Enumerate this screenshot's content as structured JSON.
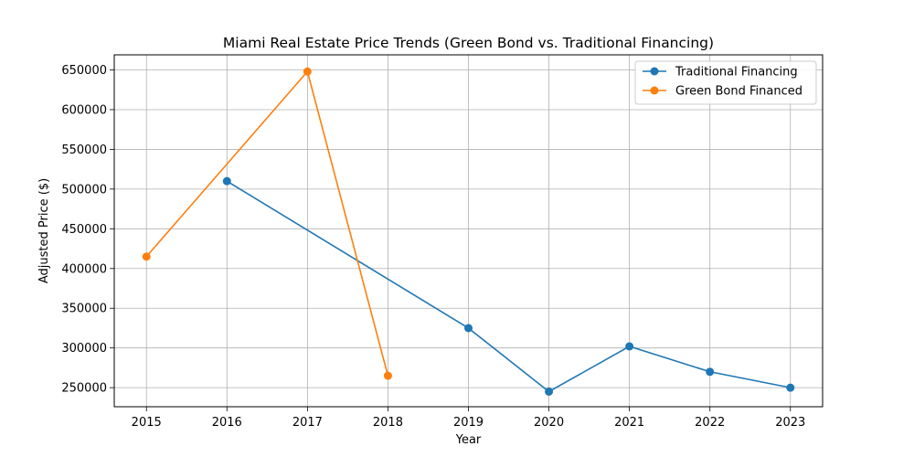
{
  "chart_data": {
    "type": "line",
    "title": "Miami Real Estate Price Trends (Green Bond vs. Traditional Financing)",
    "xlabel": "Year",
    "ylabel": "Adjusted Price ($)",
    "x_ticks": [
      "2015",
      "2016",
      "2017",
      "2018",
      "2019",
      "2020",
      "2021",
      "2022",
      "2023"
    ],
    "y_ticks": [
      "250000",
      "300000",
      "350000",
      "400000",
      "450000",
      "500000",
      "550000",
      "600000",
      "650000"
    ],
    "xlim": [
      2014.6,
      2023.4
    ],
    "ylim": [
      226000,
      669000
    ],
    "grid": true,
    "legend_position": "top-right",
    "series": [
      {
        "name": "Traditional Financing",
        "color": "#1f77b4",
        "x": [
          2016,
          2019,
          2020,
          2021,
          2022,
          2023
        ],
        "y": [
          510000,
          325000,
          245000,
          302000,
          270000,
          250000
        ]
      },
      {
        "name": "Green Bond Financed",
        "color": "#ff7f0e",
        "x": [
          2015,
          2017,
          2018
        ],
        "y": [
          415000,
          648000,
          265000
        ]
      }
    ]
  }
}
